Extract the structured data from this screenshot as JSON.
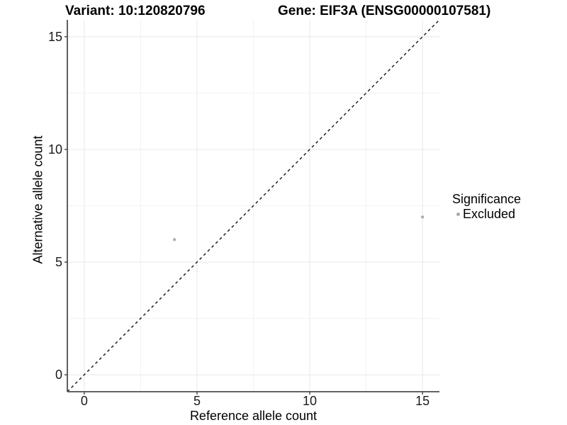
{
  "chart_data": {
    "type": "scatter",
    "title_left": "Variant: 10:120820796",
    "title_right": "Gene: EIF3A (ENSG00000107581)",
    "xlabel": "Reference allele count",
    "ylabel": "Alternative allele count",
    "xlim": [
      -0.75,
      15.75
    ],
    "ylim": [
      -0.75,
      15.75
    ],
    "x_ticks": [
      0,
      5,
      10,
      15
    ],
    "y_ticks": [
      0,
      5,
      10,
      15
    ],
    "x_minor_ticks": [
      2.5,
      7.5,
      12.5
    ],
    "y_minor_ticks": [
      2.5,
      7.5,
      12.5
    ],
    "grid": "on",
    "reference_line": {
      "name": "identity y=x",
      "style": "dashed",
      "color": "#111111",
      "from": [
        -0.75,
        -0.75
      ],
      "to": [
        15.75,
        15.75
      ]
    },
    "series": [
      {
        "name": "Excluded",
        "marker": "circle",
        "color": "#aaaaaa",
        "points": [
          [
            4,
            6
          ],
          [
            15,
            7
          ]
        ]
      }
    ],
    "legend": {
      "title": "Significance",
      "position": "right",
      "entries": [
        {
          "label": "Excluded",
          "color": "#aaaaaa"
        }
      ]
    }
  },
  "colors": {
    "background": "#ffffff",
    "axis_line": "#4d4d4d",
    "tick_mark": "#4d4d4d",
    "grid_major": "#e8e8e8",
    "grid_minor": "#f2f2f2",
    "tick_label": "#1a1a1a",
    "axis_title": "#000000",
    "point": "#aaaaaa"
  }
}
